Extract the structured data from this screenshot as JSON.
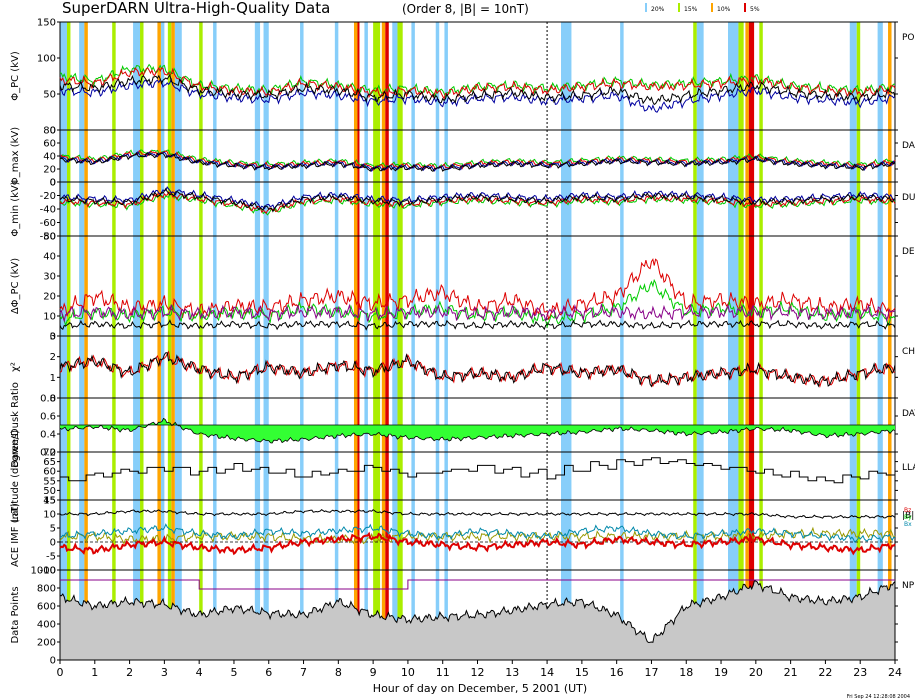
{
  "title": "SuperDARN Ultra-High-Quality Data",
  "subtitle": "(Order 8, |B| = 10nT)",
  "legend": [
    {
      "label": "20%",
      "color": "#87cefa"
    },
    {
      "label": "15%",
      "color": "#aaee00"
    },
    {
      "label": "10%",
      "color": "#ffa500"
    },
    {
      "label": "5%",
      "color": "#dd0000"
    }
  ],
  "xlabel": "Hour of day on December, 5 2001 (UT)",
  "timestamp": "Fri Sep 24 12:28:08 2004",
  "colors": {
    "line1": "#000000",
    "line2": "#0000a0",
    "line3": "#dd0000",
    "line4": "#00cc00",
    "fill_pos": "#0000cc",
    "fill_neg": "#33ff33",
    "npts": "#c8c8c8",
    "purple": "#880088"
  },
  "chart_data": {
    "type": "line",
    "x_range": [
      0,
      24
    ],
    "x_ticks": [
      "0",
      "1",
      "2",
      "3",
      "4",
      "5",
      "6",
      "7",
      "8",
      "9",
      "10",
      "11",
      "12",
      "13",
      "14",
      "15",
      "16",
      "17",
      "18",
      "19",
      "20",
      "21",
      "22",
      "23",
      "24"
    ],
    "shaded_intervals": {
      "20%": [
        [
          0.0,
          0.2
        ],
        [
          0.55,
          0.7
        ],
        [
          2.1,
          2.3
        ],
        [
          2.9,
          3.0
        ],
        [
          3.3,
          3.5
        ],
        [
          4.4,
          4.5
        ],
        [
          5.6,
          5.75
        ],
        [
          5.85,
          6.0
        ],
        [
          6.9,
          7.0
        ],
        [
          7.9,
          8.0
        ],
        [
          8.75,
          8.85
        ],
        [
          9.55,
          9.7
        ],
        [
          10.1,
          10.2
        ],
        [
          10.8,
          10.9
        ],
        [
          11.05,
          11.15
        ],
        [
          14.4,
          14.7
        ],
        [
          16.1,
          16.2
        ],
        [
          18.3,
          18.5
        ],
        [
          19.2,
          19.5
        ],
        [
          22.7,
          22.9
        ],
        [
          23.5,
          23.65
        ]
      ],
      "15%": [
        [
          0.2,
          0.3
        ],
        [
          1.5,
          1.6
        ],
        [
          2.3,
          2.4
        ],
        [
          3.1,
          3.2
        ],
        [
          4.0,
          4.1
        ],
        [
          9.0,
          9.2
        ],
        [
          9.7,
          9.85
        ],
        [
          18.2,
          18.3
        ],
        [
          19.5,
          19.65
        ],
        [
          20.1,
          20.2
        ],
        [
          22.9,
          23.0
        ]
      ],
      "10%": [
        [
          0.7,
          0.8
        ],
        [
          2.8,
          2.9
        ],
        [
          3.2,
          3.3
        ],
        [
          8.45,
          8.55
        ],
        [
          9.25,
          9.35
        ],
        [
          19.7,
          19.8
        ],
        [
          23.8,
          23.9
        ]
      ],
      "5%": [
        [
          8.55,
          8.6
        ],
        [
          9.35,
          9.45
        ],
        [
          19.8,
          19.95
        ]
      ]
    },
    "panels": [
      {
        "name": "phi_pc",
        "ylabel": "Φ_PC (kV)",
        "ylim": [
          0,
          150
        ],
        "yticks": [
          "150",
          "100",
          "50",
          "0"
        ],
        "right_label": "PO"
      },
      {
        "name": "phi_max",
        "ylabel": "Φ_max (kV)",
        "ylim": [
          0,
          80
        ],
        "yticks": [
          "80",
          "60",
          "40",
          "20",
          "0"
        ],
        "right_label": "DA"
      },
      {
        "name": "phi_min",
        "ylabel": "Φ_min (kV)",
        "ylim": [
          -80,
          0
        ],
        "yticks": [
          "0",
          "-20",
          "-40",
          "-60",
          "-80"
        ],
        "right_label": "DU"
      },
      {
        "name": "dphi",
        "ylabel": "ΔΦ_PC (kV)",
        "ylim": [
          0,
          50
        ],
        "yticks": [
          "50",
          "40",
          "30",
          "20",
          "10",
          "0"
        ],
        "right_label": "DE"
      },
      {
        "name": "chi2",
        "ylabel": "χ²",
        "ylim": [
          0,
          3
        ],
        "yticks": [
          "3",
          "2",
          "1",
          "0"
        ],
        "right_label": "CH"
      },
      {
        "name": "ratio",
        "ylabel": "Dawn/Dusk Ratio",
        "ylim": [
          0.2,
          0.8
        ],
        "yticks": [
          "0.8",
          "0.6",
          "0.4",
          "0.2"
        ],
        "right_label": "DAY"
      },
      {
        "name": "lat",
        "ylabel": "Latitude (degrees)",
        "ylim": [
          45,
          70
        ],
        "yticks": [
          "70",
          "65",
          "60",
          "55",
          "50",
          "45"
        ],
        "right_label": "LLA"
      },
      {
        "name": "imf",
        "ylabel": "ACE IMF (nT)",
        "ylim": [
          -10,
          15
        ],
        "yticks": [
          "15",
          "10",
          "5",
          "0",
          "-5",
          "-10"
        ],
        "right_label": "|B|",
        "series": [
          "Bz",
          "By",
          "Bx"
        ]
      },
      {
        "name": "npts",
        "ylabel": "Data Points",
        "ylim": [
          0,
          1000
        ],
        "yticks": [
          "1000",
          "800",
          "600",
          "400",
          "200",
          "0"
        ],
        "right_label": "NP"
      }
    ],
    "series_keypoints": {
      "hours": [
        0,
        1,
        2,
        3,
        4,
        5,
        6,
        7,
        8,
        9,
        10,
        11,
        12,
        13,
        14,
        15,
        16,
        17,
        18,
        19,
        20,
        21,
        22,
        23,
        24
      ],
      "phi_pc_black": [
        62,
        58,
        68,
        72,
        55,
        50,
        48,
        58,
        55,
        45,
        50,
        42,
        48,
        52,
        45,
        48,
        55,
        40,
        48,
        55,
        62,
        52,
        48,
        45,
        52
      ],
      "phi_pc_blue": [
        55,
        52,
        62,
        66,
        50,
        45,
        42,
        52,
        48,
        40,
        44,
        38,
        44,
        46,
        40,
        44,
        48,
        28,
        40,
        48,
        55,
        45,
        42,
        38,
        45
      ],
      "phi_pc_red": [
        70,
        65,
        80,
        82,
        60,
        55,
        52,
        65,
        60,
        52,
        55,
        50,
        58,
        60,
        55,
        60,
        65,
        60,
        62,
        65,
        70,
        60,
        55,
        52,
        58
      ],
      "phi_pc_green": [
        75,
        68,
        85,
        85,
        62,
        58,
        55,
        68,
        62,
        55,
        58,
        52,
        60,
        62,
        58,
        62,
        68,
        62,
        65,
        68,
        72,
        62,
        58,
        55,
        60
      ],
      "phi_max_black": [
        35,
        30,
        40,
        42,
        30,
        25,
        22,
        25,
        28,
        20,
        22,
        20,
        25,
        28,
        25,
        28,
        32,
        30,
        28,
        30,
        35,
        28,
        25,
        22,
        28
      ],
      "phi_min_black": [
        -25,
        -28,
        -30,
        -15,
        -22,
        -30,
        -40,
        -25,
        -22,
        -28,
        -30,
        -25,
        -22,
        -25,
        -28,
        -22,
        -25,
        -20,
        -22,
        -25,
        -30,
        -28,
        -25,
        -22,
        -25
      ],
      "dphi_red": [
        12,
        20,
        14,
        16,
        12,
        15,
        14,
        18,
        20,
        16,
        18,
        22,
        14,
        18,
        12,
        16,
        20,
        38,
        16,
        18,
        16,
        18,
        14,
        16,
        12
      ],
      "dphi_green": [
        8,
        12,
        10,
        12,
        10,
        12,
        10,
        14,
        12,
        10,
        12,
        14,
        10,
        12,
        8,
        10,
        14,
        26,
        12,
        14,
        12,
        14,
        10,
        12,
        8
      ],
      "dphi_black": [
        5,
        6,
        5,
        6,
        5,
        6,
        5,
        6,
        6,
        5,
        6,
        6,
        5,
        6,
        5,
        6,
        6,
        5,
        6,
        6,
        6,
        6,
        5,
        6,
        5
      ],
      "chi2": [
        1.5,
        1.8,
        1.2,
        2.0,
        1.4,
        1.0,
        1.5,
        1.2,
        1.6,
        1.3,
        1.8,
        1.0,
        1.2,
        1.0,
        1.5,
        1.2,
        1.4,
        0.8,
        1.0,
        1.2,
        1.4,
        1.0,
        0.8,
        1.2,
        1.5
      ],
      "ratio": [
        0.45,
        0.48,
        0.44,
        0.55,
        0.4,
        0.35,
        0.32,
        0.34,
        0.38,
        0.4,
        0.36,
        0.34,
        0.36,
        0.38,
        0.4,
        0.42,
        0.46,
        0.44,
        0.4,
        0.42,
        0.46,
        0.44,
        0.38,
        0.4,
        0.44
      ],
      "lat": [
        55,
        58,
        60,
        62,
        60,
        62,
        60,
        58,
        60,
        62,
        58,
        60,
        62,
        60,
        58,
        62,
        64,
        66,
        64,
        62,
        60,
        58,
        55,
        58,
        60
      ],
      "imf_bz": [
        -2,
        -3,
        -1,
        0,
        -2,
        -3,
        -2,
        0,
        1,
        2,
        0,
        -1,
        -2,
        -1,
        0,
        -1,
        1,
        0,
        -1,
        0,
        1,
        -1,
        -2,
        -3,
        -1
      ],
      "imf_by": [
        2,
        3,
        4,
        5,
        3,
        2,
        4,
        3,
        4,
        5,
        3,
        2,
        4,
        3,
        2,
        4,
        5,
        3,
        2,
        3,
        4,
        3,
        2,
        1,
        2
      ],
      "imf_bt": [
        10,
        10,
        11,
        11,
        10,
        10,
        10,
        11,
        11,
        11,
        10,
        10,
        10,
        10,
        10,
        10,
        10,
        10,
        10,
        10,
        10,
        9,
        9,
        9,
        9
      ],
      "npts": [
        700,
        600,
        650,
        620,
        500,
        580,
        520,
        500,
        650,
        500,
        450,
        480,
        500,
        550,
        620,
        650,
        500,
        200,
        600,
        700,
        850,
        700,
        650,
        700,
        850
      ],
      "npts_threshold": [
        1000,
        1000,
        1000,
        1000,
        900,
        900,
        900,
        900,
        900,
        900,
        1000,
        1000,
        1000,
        1000,
        1000,
        1000,
        1000,
        1000,
        1000,
        1000,
        1000,
        1000,
        1000,
        1000,
        1000
      ]
    }
  }
}
